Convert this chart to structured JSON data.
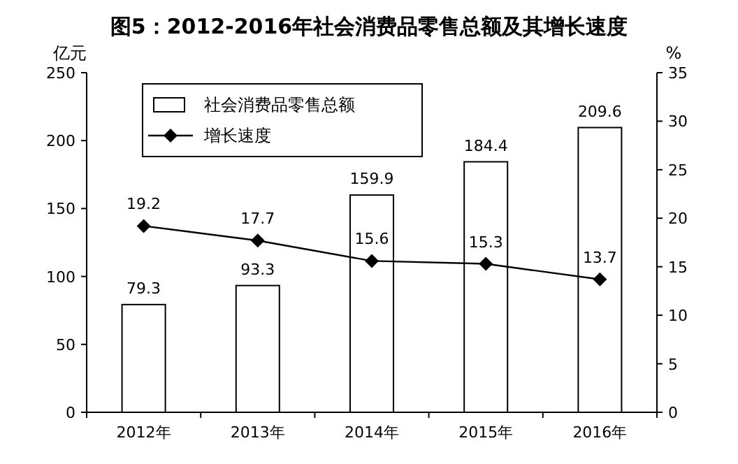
{
  "chart_data": {
    "type": "bar",
    "title": "图5：2012-2016年社会消费品零售总额及其增长速度",
    "ylabel": "亿元",
    "y2label": "%",
    "categories": [
      "2012年",
      "2013年",
      "2014年",
      "2015年",
      "2016年"
    ],
    "series": [
      {
        "name": "社会消费品零售总额",
        "color": "#ffffff",
        "values": [
          79.3,
          93.3,
          159.9,
          184.4,
          209.6
        ]
      },
      {
        "name": "增长速度",
        "type": "line",
        "axis": "y2",
        "color": "#000000",
        "marker": "diamond",
        "values": [
          19.2,
          17.7,
          15.6,
          15.3,
          13.7
        ]
      }
    ],
    "ylim": [
      0,
      250
    ],
    "yticks": [
      0,
      50,
      100,
      150,
      200,
      250
    ],
    "y2lim": [
      0,
      35
    ],
    "y2ticks": [
      0,
      5,
      10,
      15,
      20,
      25,
      30,
      35
    ],
    "data_labels": true,
    "legend": "top left"
  }
}
